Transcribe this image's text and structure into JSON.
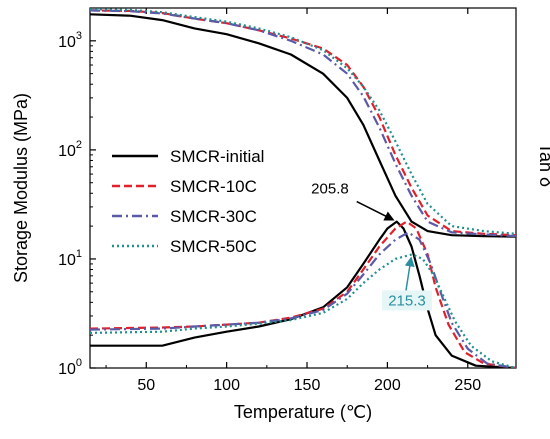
{
  "chart_data": {
    "type": "line",
    "xlabel": "Temperature (℃)",
    "ylabel_left": "Storage Modulus (MPa)",
    "ylabel_right": "Tan δ",
    "xlim": [
      15,
      280
    ],
    "xticks": [
      50,
      100,
      150,
      200,
      250
    ],
    "xtick_labels": [
      "50",
      "100",
      "150",
      "200",
      "250"
    ],
    "ylim_left": [
      1,
      2000
    ],
    "yscale_left": "log",
    "yticks_left": [
      {
        "value": 1,
        "base": "10",
        "exp": "0"
      },
      {
        "value": 10,
        "base": "10",
        "exp": "1"
      },
      {
        "value": 100,
        "base": "10",
        "exp": "2"
      },
      {
        "value": 1000,
        "base": "10",
        "exp": "3"
      }
    ],
    "grid": false,
    "legend_position": "middle-left",
    "series": [
      {
        "name": "SMCR-initial",
        "color": "#000000",
        "dash": "solid",
        "storage_modulus": [
          [
            15,
            1750
          ],
          [
            40,
            1700
          ],
          [
            60,
            1550
          ],
          [
            80,
            1300
          ],
          [
            100,
            1150
          ],
          [
            120,
            950
          ],
          [
            140,
            750
          ],
          [
            160,
            500
          ],
          [
            175,
            300
          ],
          [
            185,
            170
          ],
          [
            195,
            80
          ],
          [
            205,
            38
          ],
          [
            215,
            22
          ],
          [
            225,
            18
          ],
          [
            240,
            16.5
          ],
          [
            260,
            16.2
          ],
          [
            280,
            16
          ]
        ],
        "tan_delta": [
          [
            15,
            1.6
          ],
          [
            60,
            1.6
          ],
          [
            80,
            1.9
          ],
          [
            100,
            2.15
          ],
          [
            120,
            2.4
          ],
          [
            140,
            2.8
          ],
          [
            160,
            3.6
          ],
          [
            175,
            5.5
          ],
          [
            185,
            9
          ],
          [
            195,
            15
          ],
          [
            200,
            19
          ],
          [
            205.8,
            22
          ],
          [
            210,
            19
          ],
          [
            215,
            13
          ],
          [
            220,
            7
          ],
          [
            225,
            3.5
          ],
          [
            230,
            2
          ],
          [
            240,
            1.3
          ],
          [
            255,
            1.05
          ],
          [
            280,
            1
          ]
        ]
      },
      {
        "name": "SMCR-10C",
        "color": "#e0202a",
        "dash": "dashed",
        "storage_modulus": [
          [
            15,
            1900
          ],
          [
            40,
            1880
          ],
          [
            60,
            1800
          ],
          [
            80,
            1600
          ],
          [
            100,
            1450
          ],
          [
            120,
            1250
          ],
          [
            140,
            1050
          ],
          [
            160,
            850
          ],
          [
            175,
            600
          ],
          [
            185,
            380
          ],
          [
            195,
            200
          ],
          [
            205,
            90
          ],
          [
            215,
            45
          ],
          [
            225,
            25
          ],
          [
            240,
            18
          ],
          [
            260,
            17
          ],
          [
            280,
            16.5
          ]
        ],
        "tan_delta": [
          [
            15,
            2.3
          ],
          [
            60,
            2.35
          ],
          [
            80,
            2.4
          ],
          [
            100,
            2.5
          ],
          [
            120,
            2.6
          ],
          [
            140,
            2.9
          ],
          [
            160,
            3.5
          ],
          [
            175,
            5
          ],
          [
            185,
            8
          ],
          [
            195,
            13
          ],
          [
            205,
            19
          ],
          [
            212,
            22
          ],
          [
            218,
            19
          ],
          [
            225,
            11
          ],
          [
            230,
            5.5
          ],
          [
            238,
            2.5
          ],
          [
            248,
            1.4
          ],
          [
            260,
            1.1
          ],
          [
            280,
            1
          ]
        ]
      },
      {
        "name": "SMCR-30C",
        "color": "#5a5aa8",
        "dash": "dashdot",
        "storage_modulus": [
          [
            15,
            1900
          ],
          [
            40,
            1870
          ],
          [
            60,
            1780
          ],
          [
            80,
            1600
          ],
          [
            100,
            1450
          ],
          [
            120,
            1250
          ],
          [
            140,
            1000
          ],
          [
            160,
            750
          ],
          [
            175,
            500
          ],
          [
            185,
            310
          ],
          [
            195,
            160
          ],
          [
            205,
            75
          ],
          [
            215,
            38
          ],
          [
            225,
            22
          ],
          [
            240,
            17.5
          ],
          [
            260,
            16.8
          ],
          [
            280,
            16.2
          ]
        ],
        "tan_delta": [
          [
            15,
            2.25
          ],
          [
            60,
            2.3
          ],
          [
            80,
            2.4
          ],
          [
            100,
            2.5
          ],
          [
            120,
            2.6
          ],
          [
            140,
            2.85
          ],
          [
            160,
            3.4
          ],
          [
            175,
            4.8
          ],
          [
            185,
            7.2
          ],
          [
            195,
            11
          ],
          [
            205,
            15
          ],
          [
            213,
            17.5
          ],
          [
            220,
            15
          ],
          [
            227,
            9
          ],
          [
            233,
            5
          ],
          [
            240,
            2.6
          ],
          [
            250,
            1.5
          ],
          [
            262,
            1.1
          ],
          [
            280,
            1
          ]
        ]
      },
      {
        "name": "SMCR-50C",
        "color": "#1f8f8f",
        "dash": "dotted",
        "storage_modulus": [
          [
            15,
            1950
          ],
          [
            40,
            1920
          ],
          [
            60,
            1830
          ],
          [
            80,
            1650
          ],
          [
            100,
            1500
          ],
          [
            120,
            1300
          ],
          [
            140,
            1080
          ],
          [
            160,
            820
          ],
          [
            175,
            560
          ],
          [
            185,
            380
          ],
          [
            195,
            230
          ],
          [
            205,
            120
          ],
          [
            215,
            60
          ],
          [
            225,
            32
          ],
          [
            240,
            20
          ],
          [
            260,
            18
          ],
          [
            280,
            17
          ]
        ],
        "tan_delta": [
          [
            15,
            2.1
          ],
          [
            60,
            2.15
          ],
          [
            80,
            2.3
          ],
          [
            100,
            2.4
          ],
          [
            120,
            2.55
          ],
          [
            140,
            2.75
          ],
          [
            160,
            3.2
          ],
          [
            175,
            4.3
          ],
          [
            185,
            6
          ],
          [
            195,
            8
          ],
          [
            205,
            10
          ],
          [
            215.3,
            11
          ],
          [
            222,
            10
          ],
          [
            229,
            7
          ],
          [
            235,
            4.5
          ],
          [
            242,
            2.7
          ],
          [
            252,
            1.6
          ],
          [
            265,
            1.15
          ],
          [
            280,
            1
          ]
        ]
      }
    ],
    "annotations": [
      {
        "text": "205.8",
        "x": 205.8,
        "y": 22,
        "color": "#000000"
      },
      {
        "text": "215.3",
        "x": 215.3,
        "y": 11,
        "color": "#2a8fa0"
      }
    ]
  }
}
